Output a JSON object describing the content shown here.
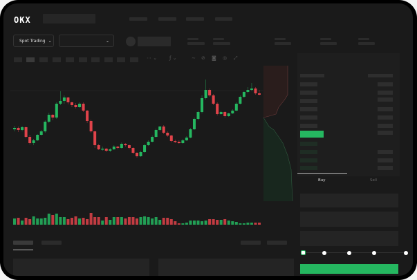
{
  "header": {
    "logo": "OKX"
  },
  "market_bar": {
    "mode_button": "Spot Trading",
    "mode_chevron": "chevron-down-icon",
    "pair_chevron": "chevron-down-icon"
  },
  "toolbar": {
    "icons": [
      "timeframe-dropdown",
      "indicator-dropdown",
      "line-icon",
      "draw-icon",
      "camera-icon",
      "settings-icon",
      "fullscreen-icon"
    ]
  },
  "orderbook": {
    "view_icons": [
      "both-sides-icon",
      "bids-only-icon",
      "asks-only-icon"
    ]
  },
  "trade": {
    "tabs": [
      {
        "label": "Buy",
        "active": true
      },
      {
        "label": "Sell",
        "active": false
      }
    ],
    "slider_percent": 0
  },
  "colors": {
    "up": "#25b760",
    "down": "#e0434a",
    "background": "#1a1a1a"
  },
  "chart_data": {
    "type": "candlestick",
    "title": "",
    "xlabel": "",
    "ylabel": "",
    "grid": true,
    "candles": [
      [
        113,
        118,
        110,
        115
      ],
      [
        115,
        117,
        109,
        112
      ],
      [
        112,
        118,
        110,
        116
      ],
      [
        116,
        117,
        100,
        102
      ],
      [
        102,
        105,
        91,
        93
      ],
      [
        93,
        99,
        90,
        97
      ],
      [
        97,
        106,
        96,
        105
      ],
      [
        105,
        112,
        104,
        110
      ],
      [
        110,
        126,
        108,
        124
      ],
      [
        124,
        137,
        122,
        134
      ],
      [
        134,
        135,
        126,
        130
      ],
      [
        130,
        152,
        128,
        150
      ],
      [
        150,
        168,
        148,
        154
      ],
      [
        154,
        162,
        150,
        159
      ],
      [
        159,
        160,
        149,
        152
      ],
      [
        152,
        153,
        145,
        148
      ],
      [
        148,
        151,
        143,
        145
      ],
      [
        145,
        152,
        144,
        150
      ],
      [
        150,
        152,
        138,
        140
      ],
      [
        140,
        141,
        122,
        125
      ],
      [
        125,
        127,
        108,
        110
      ],
      [
        110,
        111,
        86,
        90
      ],
      [
        90,
        92,
        83,
        84
      ],
      [
        84,
        88,
        82,
        85
      ],
      [
        85,
        86,
        80,
        82
      ],
      [
        82,
        86,
        80,
        84
      ],
      [
        84,
        90,
        83,
        88
      ],
      [
        88,
        89,
        84,
        86
      ],
      [
        86,
        94,
        85,
        92
      ],
      [
        92,
        93,
        88,
        90
      ],
      [
        90,
        91,
        84,
        86
      ],
      [
        86,
        87,
        77,
        79
      ],
      [
        79,
        80,
        72,
        74
      ],
      [
        74,
        82,
        73,
        80
      ],
      [
        80,
        92,
        79,
        90
      ],
      [
        90,
        97,
        89,
        95
      ],
      [
        95,
        104,
        94,
        102
      ],
      [
        102,
        114,
        101,
        112
      ],
      [
        112,
        118,
        110,
        117
      ],
      [
        117,
        119,
        106,
        108
      ],
      [
        108,
        110,
        102,
        104
      ],
      [
        104,
        105,
        94,
        96
      ],
      [
        96,
        98,
        93,
        95
      ],
      [
        95,
        97,
        92,
        93
      ],
      [
        93,
        99,
        92,
        97
      ],
      [
        97,
        103,
        96,
        101
      ],
      [
        101,
        115,
        100,
        113
      ],
      [
        113,
        130,
        112,
        128
      ],
      [
        128,
        140,
        126,
        138
      ],
      [
        138,
        162,
        136,
        158
      ],
      [
        158,
        185,
        156,
        170
      ],
      [
        170,
        172,
        160,
        162
      ],
      [
        162,
        164,
        148,
        150
      ],
      [
        150,
        152,
        133,
        135
      ],
      [
        135,
        140,
        134,
        138
      ],
      [
        138,
        139,
        130,
        132
      ],
      [
        132,
        137,
        131,
        136
      ],
      [
        136,
        142,
        135,
        140
      ],
      [
        140,
        152,
        139,
        150
      ],
      [
        150,
        162,
        149,
        160
      ],
      [
        160,
        168,
        158,
        167
      ],
      [
        167,
        174,
        165,
        170
      ],
      [
        170,
        180,
        168,
        172
      ],
      [
        172,
        174,
        163,
        165
      ],
      [
        165,
        170,
        162,
        163
      ]
    ],
    "volumes": [
      9,
      10,
      6,
      10,
      8,
      12,
      9,
      9,
      10,
      16,
      14,
      16,
      11,
      11,
      8,
      10,
      12,
      9,
      10,
      8,
      17,
      11,
      11,
      6,
      11,
      7,
      11,
      11,
      11,
      9,
      11,
      11,
      9,
      11,
      12,
      11,
      9,
      11,
      7,
      10,
      10,
      8,
      5,
      2,
      2,
      3,
      6,
      6,
      6,
      5,
      6,
      8,
      8,
      7,
      7,
      8,
      6,
      5,
      4,
      2,
      2,
      3,
      3,
      3,
      3
    ]
  }
}
